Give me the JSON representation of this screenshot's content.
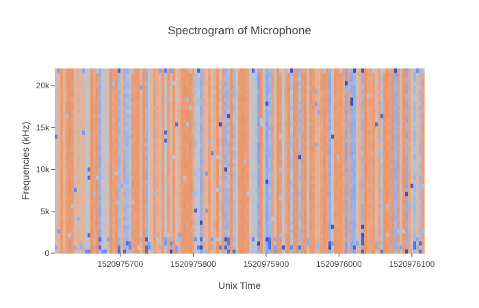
{
  "chart_data": {
    "type": "heatmap",
    "title": "Spectrogram of Microphone",
    "xlabel": "Unix Time",
    "ylabel": "Frequencies (kHz)",
    "xlim": [
      1520975610,
      1520976117
    ],
    "ylim": [
      0,
      22050
    ],
    "x_ticks": [
      1520975700,
      1520975800,
      1520975900,
      1520976000,
      1520976100
    ],
    "x_tick_labels": [
      "1520975700",
      "1520975800",
      "1520975900",
      "1520976000",
      "1520976100"
    ],
    "y_ticks": [
      0,
      5000,
      10000,
      15000,
      20000
    ],
    "y_tick_labels": [
      "0",
      "5k",
      "10k",
      "15k",
      "20k"
    ],
    "colorscale": [
      "#3b4cc0",
      "#7b9ff9",
      "#c0c4cc",
      "#e8b093",
      "#e8956b"
    ],
    "grid": false,
    "legend": "none"
  }
}
